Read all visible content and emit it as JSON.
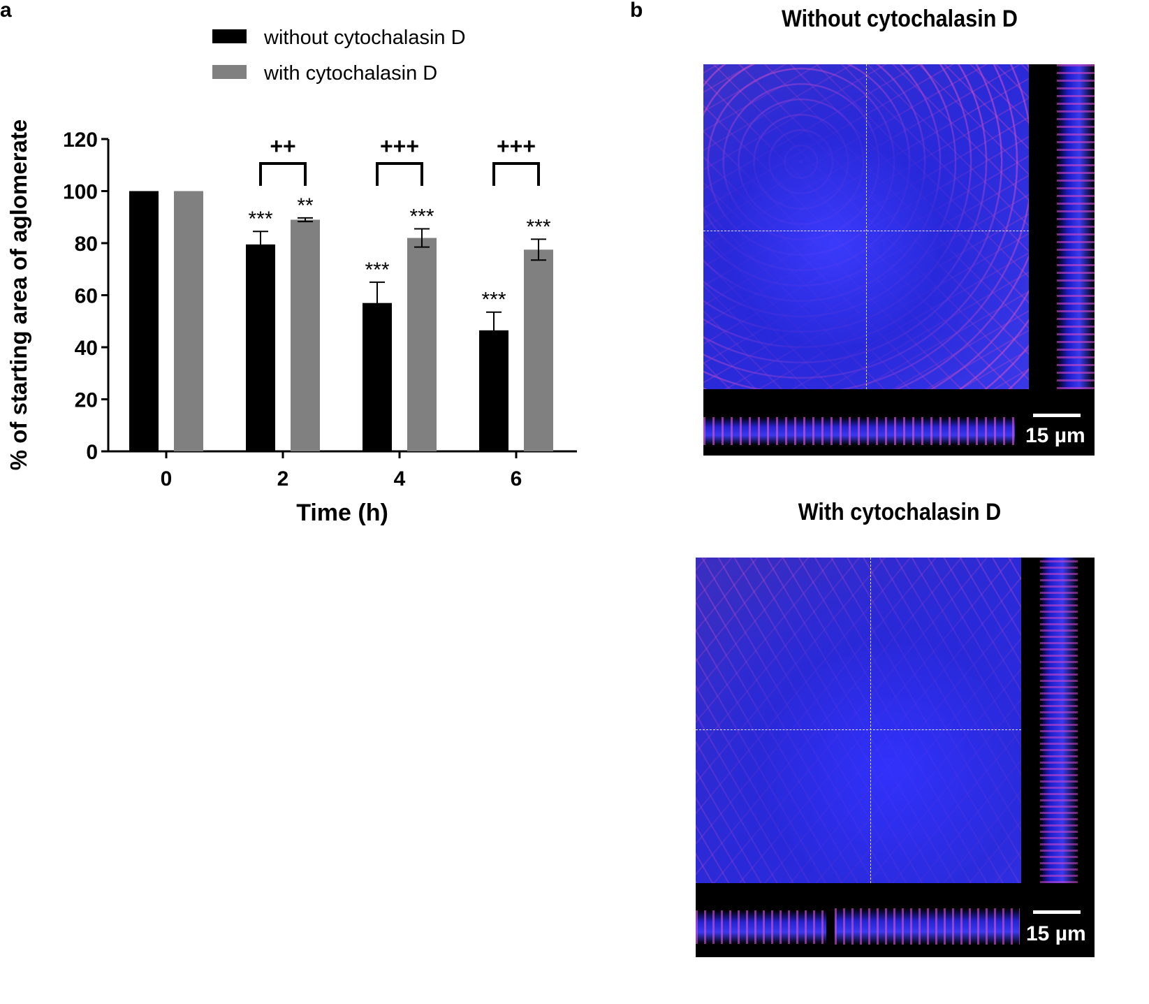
{
  "panels": {
    "a_label": "a",
    "b_label": "b"
  },
  "colors": {
    "without": "#000000",
    "with": "#808080",
    "nucleus": "#2a2ad8",
    "membrane": "#d040c0"
  },
  "chart_data": {
    "type": "bar",
    "categories": [
      "0",
      "2",
      "4",
      "6"
    ],
    "xlabel": "Time (h)",
    "ylabel": "% of starting area of aglomerate",
    "ylim": [
      0,
      120
    ],
    "yticks": [
      0,
      20,
      40,
      60,
      80,
      100,
      120
    ],
    "legend_position": "top",
    "series": [
      {
        "name": "without cytochalasin D",
        "values": [
          100,
          79.5,
          57,
          46.5
        ],
        "errors": [
          0,
          5,
          8,
          7
        ],
        "significance": [
          "",
          "***",
          "***",
          "***"
        ]
      },
      {
        "name": "with cytochalasin  D",
        "values": [
          100,
          89,
          82,
          77.5
        ],
        "errors": [
          0,
          0.7,
          3.5,
          4
        ],
        "significance": [
          "",
          "**",
          "***",
          "***"
        ]
      }
    ],
    "comparisons": [
      "",
      "++",
      "+++",
      "+++"
    ]
  },
  "micrographs": [
    {
      "title": "Without cytochalasin D",
      "scale_label": "15 µm"
    },
    {
      "title": "With cytochalasin D",
      "scale_label": "15 µm"
    }
  ]
}
